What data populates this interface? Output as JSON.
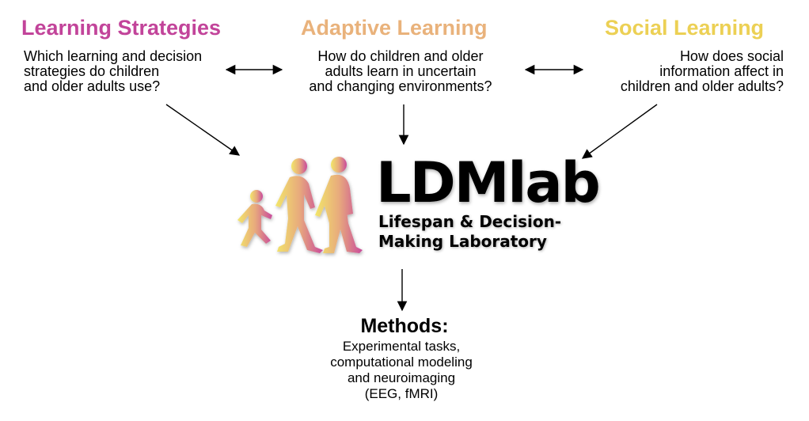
{
  "colors": {
    "learning_strategies": "#c2449a",
    "adaptive_learning": "#e9b27b",
    "social_learning": "#ecd054",
    "logo_gradient": [
      "#f2e66a",
      "#e8ab7c",
      "#c94a9c"
    ]
  },
  "topics": [
    {
      "heading": "Learning Strategies",
      "question_lines": [
        "Which learning and decision",
        "strategies do children",
        "and older adults use?"
      ]
    },
    {
      "heading": "Adaptive Learning",
      "question_lines": [
        "How do children and older",
        "adults learn in uncertain",
        "and changing environments?"
      ]
    },
    {
      "heading": "Social Learning",
      "question_lines": [
        "How does social",
        "information affect in",
        "children and older adults?"
      ]
    }
  ],
  "logo": {
    "title": "LDMlab",
    "subtitle_lines": [
      "Lifespan & Decision-",
      "Making Laboratory"
    ],
    "icon": "lifespan-silhouettes-icon"
  },
  "methods": {
    "title": "Methods:",
    "lines": [
      "Experimental tasks,",
      "computational modeling",
      "and neuroimaging",
      "(EEG, fMRI)"
    ]
  }
}
